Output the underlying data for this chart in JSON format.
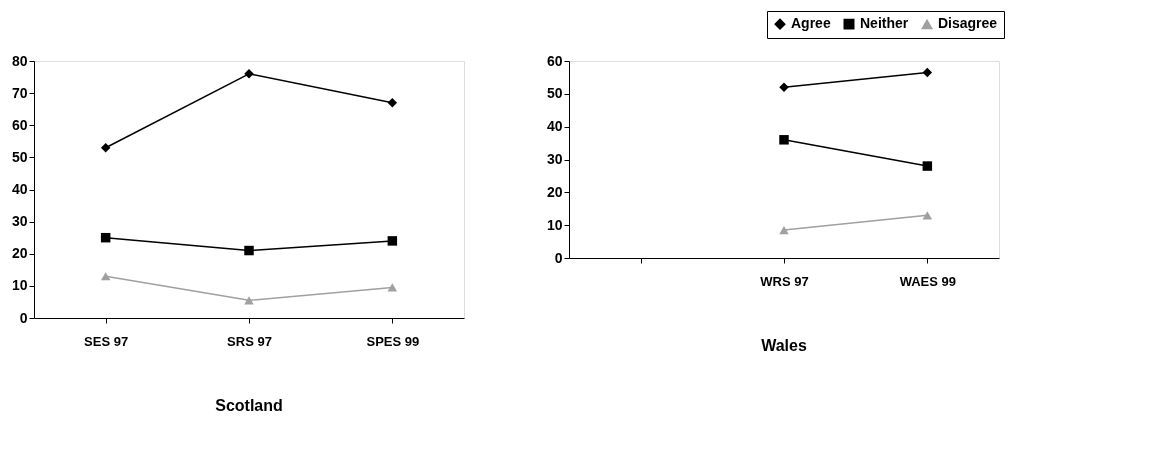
{
  "chart_data": [
    {
      "type": "line",
      "title": "Scotland",
      "categories": [
        "SES 97",
        "SRS 97",
        "SPES 99"
      ],
      "ylim": [
        0,
        80
      ],
      "yticks": [
        0,
        10,
        20,
        30,
        40,
        50,
        60,
        70,
        80
      ],
      "grid": false,
      "legend": false,
      "series": [
        {
          "color": "#000000",
          "marker": "diamond",
          "values": [
            53,
            76,
            67
          ]
        },
        {
          "color": "#000000",
          "marker": "square",
          "values": [
            25,
            21,
            24
          ]
        },
        {
          "color": "#a0a0a0",
          "marker": "triangle",
          "values": [
            13,
            5.5,
            9.5
          ]
        }
      ]
    },
    {
      "type": "line",
      "title": "Wales",
      "categories": [
        null,
        "WRS 97",
        "WAES 99"
      ],
      "ylim": [
        0,
        60
      ],
      "yticks": [
        0,
        10,
        20,
        30,
        40,
        50,
        60
      ],
      "grid": false,
      "legend": "top right",
      "series": [
        {
          "name": "Agree",
          "color": "#000000",
          "marker": "diamond",
          "values": [
            null,
            52,
            56.5
          ]
        },
        {
          "name": "Neither",
          "color": "#000000",
          "marker": "square",
          "values": [
            null,
            36,
            28
          ]
        },
        {
          "name": "Disagree",
          "color": "#a0a0a0",
          "marker": "triangle",
          "values": [
            null,
            8.5,
            13
          ]
        }
      ]
    }
  ]
}
